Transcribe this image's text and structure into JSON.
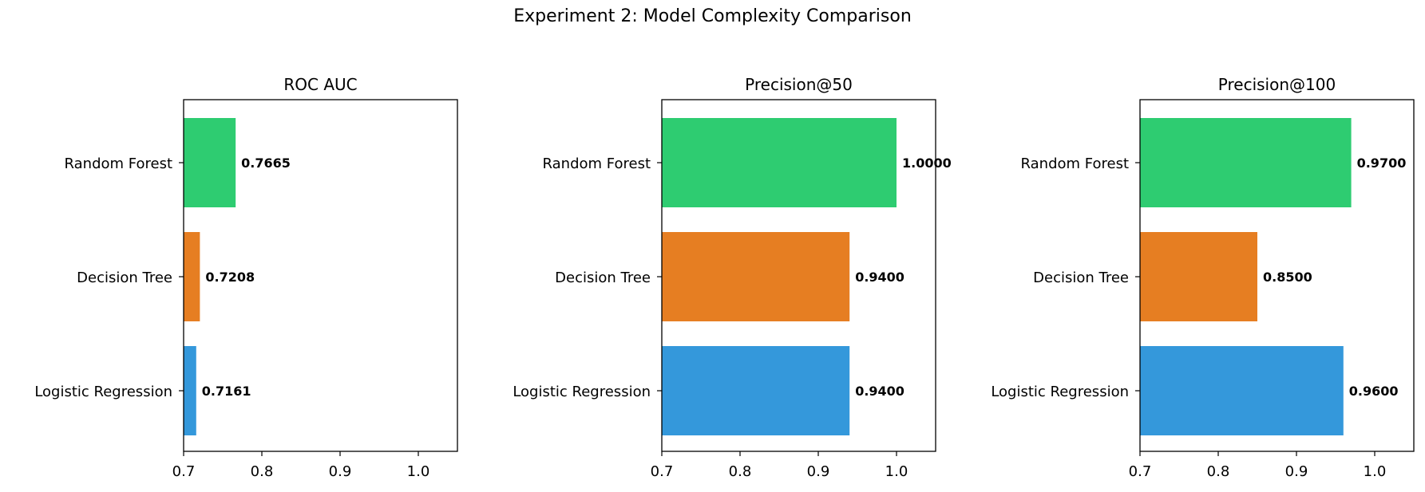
{
  "figure": {
    "title": "Experiment 2: Model Complexity Comparison"
  },
  "chart_data": [
    {
      "type": "bar",
      "orientation": "horizontal",
      "title": "ROC AUC",
      "categories": [
        "Random Forest",
        "Decision Tree",
        "Logistic Regression"
      ],
      "values": [
        0.7665,
        0.7208,
        0.7161
      ],
      "value_labels": [
        "0.7665",
        "0.7208",
        "0.7161"
      ],
      "colors": [
        "#2ecc71",
        "#e67e22",
        "#3498db"
      ],
      "xlim": [
        0.7,
        1.05
      ],
      "xticks": [
        0.7,
        0.8,
        0.9,
        1.0
      ],
      "xtick_labels": [
        "0.7",
        "0.8",
        "0.9",
        "1.0"
      ],
      "xlabel": "",
      "ylabel": "",
      "grid": false
    },
    {
      "type": "bar",
      "orientation": "horizontal",
      "title": "Precision@50",
      "categories": [
        "Random Forest",
        "Decision Tree",
        "Logistic Regression"
      ],
      "values": [
        1.0,
        0.94,
        0.94
      ],
      "value_labels": [
        "1.0000",
        "0.9400",
        "0.9400"
      ],
      "colors": [
        "#2ecc71",
        "#e67e22",
        "#3498db"
      ],
      "xlim": [
        0.7,
        1.05
      ],
      "xticks": [
        0.7,
        0.8,
        0.9,
        1.0
      ],
      "xtick_labels": [
        "0.7",
        "0.8",
        "0.9",
        "1.0"
      ],
      "xlabel": "",
      "ylabel": "",
      "grid": false
    },
    {
      "type": "bar",
      "orientation": "horizontal",
      "title": "Precision@100",
      "categories": [
        "Random Forest",
        "Decision Tree",
        "Logistic Regression"
      ],
      "values": [
        0.97,
        0.85,
        0.96
      ],
      "value_labels": [
        "0.9700",
        "0.8500",
        "0.9600"
      ],
      "colors": [
        "#2ecc71",
        "#e67e22",
        "#3498db"
      ],
      "xlim": [
        0.7,
        1.05
      ],
      "xticks": [
        0.7,
        0.8,
        0.9,
        1.0
      ],
      "xtick_labels": [
        "0.7",
        "0.8",
        "0.9",
        "1.0"
      ],
      "xlabel": "",
      "ylabel": "",
      "grid": false
    }
  ]
}
